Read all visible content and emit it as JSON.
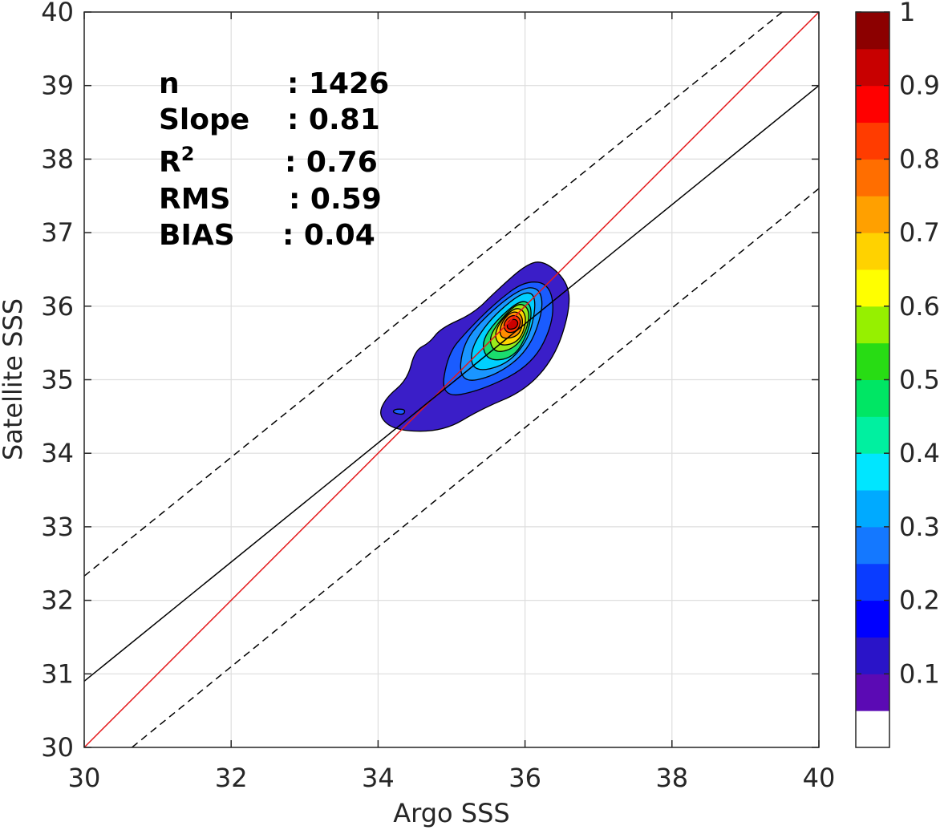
{
  "chart_data": {
    "type": "contour",
    "xlabel": "Argo SSS",
    "ylabel": "Satellite SSS",
    "xlim": [
      30,
      40
    ],
    "ylim": [
      30,
      40
    ],
    "x_ticks": [
      30,
      32,
      34,
      36,
      38,
      40
    ],
    "y_ticks": [
      30,
      31,
      32,
      33,
      34,
      35,
      36,
      37,
      38,
      39,
      40
    ],
    "grid": true,
    "stats": [
      {
        "name": "n",
        "sep": ":",
        "value": "1426"
      },
      {
        "name": "Slope",
        "sep": ":",
        "value": "0.81"
      },
      {
        "name": "R",
        "sup": "2",
        "sep": ":",
        "value": "0.76"
      },
      {
        "name": "RMS",
        "sep": ":",
        "value": "0.59"
      },
      {
        "name": "BIAS",
        "sep": ":",
        "value": "0.04"
      }
    ],
    "lines": [
      {
        "kind": "identity",
        "color": "#e41a1c",
        "style": "solid",
        "points": [
          [
            30,
            30
          ],
          [
            40,
            40
          ]
        ]
      },
      {
        "kind": "regression",
        "color": "#000000",
        "style": "solid",
        "points": [
          [
            30,
            30.9
          ],
          [
            40,
            39.0
          ]
        ]
      },
      {
        "kind": "upper-bound",
        "color": "#000000",
        "style": "dashed",
        "points": [
          [
            30,
            32.33
          ],
          [
            39.5,
            40
          ]
        ]
      },
      {
        "kind": "lower-bound",
        "color": "#000000",
        "style": "dashed",
        "points": [
          [
            30.65,
            30
          ],
          [
            40,
            37.6
          ]
        ]
      }
    ],
    "density_peak": {
      "x": 35.85,
      "y": 35.75
    },
    "contours": [
      {
        "level": 0.05,
        "color": "#3a1ec8",
        "points": [
          [
            34.25,
            34.3
          ],
          [
            34.9,
            34.3
          ],
          [
            35.4,
            34.6
          ],
          [
            36.0,
            34.85
          ],
          [
            36.4,
            35.3
          ],
          [
            36.6,
            35.9
          ],
          [
            36.6,
            36.3
          ],
          [
            36.3,
            36.6
          ],
          [
            36.05,
            36.6
          ],
          [
            35.6,
            36.2
          ],
          [
            35.3,
            35.9
          ],
          [
            34.85,
            35.7
          ],
          [
            34.7,
            35.5
          ],
          [
            34.5,
            35.4
          ],
          [
            34.4,
            35.0
          ],
          [
            34.1,
            34.75
          ],
          [
            34.0,
            34.5
          ]
        ]
      },
      {
        "level": 0.15,
        "color": "#1a5cff",
        "points": [
          [
            34.85,
            34.75
          ],
          [
            35.4,
            34.85
          ],
          [
            36.1,
            35.2
          ],
          [
            36.4,
            35.8
          ],
          [
            36.35,
            36.3
          ],
          [
            36.0,
            36.35
          ],
          [
            35.6,
            36.05
          ],
          [
            35.2,
            35.65
          ],
          [
            34.95,
            35.35
          ]
        ]
      },
      {
        "level": 0.25,
        "color": "#1a96ff",
        "points": [
          [
            35.1,
            34.95
          ],
          [
            35.6,
            35.05
          ],
          [
            36.05,
            35.4
          ],
          [
            36.25,
            35.95
          ],
          [
            36.2,
            36.25
          ],
          [
            35.95,
            36.25
          ],
          [
            35.5,
            35.9
          ],
          [
            35.15,
            35.5
          ]
        ]
      },
      {
        "level": 0.35,
        "color": "#00d0ff",
        "points": [
          [
            35.3,
            35.1
          ],
          [
            35.75,
            35.2
          ],
          [
            36.05,
            35.55
          ],
          [
            36.15,
            36.0
          ],
          [
            36.1,
            36.2
          ],
          [
            35.9,
            36.15
          ],
          [
            35.5,
            35.8
          ],
          [
            35.25,
            35.4
          ]
        ]
      },
      {
        "level": 0.45,
        "color": "#1adc6e",
        "points": [
          [
            35.5,
            35.25
          ],
          [
            35.85,
            35.3
          ],
          [
            36.05,
            35.65
          ],
          [
            36.1,
            36.0
          ],
          [
            35.95,
            36.1
          ],
          [
            35.6,
            35.8
          ],
          [
            35.4,
            35.5
          ]
        ]
      },
      {
        "level": 0.55,
        "color": "#9aeb1a",
        "points": [
          [
            35.6,
            35.35
          ],
          [
            35.9,
            35.45
          ],
          [
            36.05,
            35.75
          ],
          [
            36.05,
            35.98
          ],
          [
            35.9,
            36.05
          ],
          [
            35.65,
            35.8
          ],
          [
            35.5,
            35.55
          ]
        ]
      },
      {
        "level": 0.65,
        "color": "#ffd500",
        "points": [
          [
            35.68,
            35.45
          ],
          [
            35.92,
            35.52
          ],
          [
            36.02,
            35.78
          ],
          [
            35.98,
            35.95
          ],
          [
            35.85,
            35.98
          ],
          [
            35.65,
            35.78
          ],
          [
            35.58,
            35.58
          ]
        ]
      },
      {
        "level": 0.75,
        "color": "#ff8c00",
        "points": [
          [
            35.72,
            35.55
          ],
          [
            35.92,
            35.6
          ],
          [
            35.98,
            35.8
          ],
          [
            35.92,
            35.92
          ],
          [
            35.8,
            35.92
          ],
          [
            35.68,
            35.78
          ],
          [
            35.65,
            35.62
          ]
        ]
      },
      {
        "level": 0.85,
        "color": "#ff3200",
        "points": [
          [
            35.75,
            35.63
          ],
          [
            35.9,
            35.66
          ],
          [
            35.95,
            35.8
          ],
          [
            35.88,
            35.88
          ],
          [
            35.78,
            35.86
          ],
          [
            35.7,
            35.75
          ]
        ]
      },
      {
        "level": 0.95,
        "color": "#cc0000",
        "points": [
          [
            35.78,
            35.68
          ],
          [
            35.88,
            35.7
          ],
          [
            35.91,
            35.78
          ],
          [
            35.86,
            35.83
          ],
          [
            35.78,
            35.8
          ],
          [
            35.75,
            35.73
          ]
        ]
      }
    ],
    "contour_islands": [
      {
        "level": 0.05,
        "color": "#1a5cff",
        "points": [
          [
            34.2,
            34.55
          ],
          [
            34.35,
            34.52
          ],
          [
            34.37,
            34.6
          ],
          [
            34.22,
            34.6
          ]
        ]
      }
    ],
    "colorbar": {
      "ticks": [
        0.1,
        0.2,
        0.3,
        0.4,
        0.5,
        0.6,
        0.7,
        0.8,
        0.9,
        1
      ],
      "tick_labels": [
        "0.1",
        "0.2",
        "0.3",
        "0.4",
        "0.5",
        "0.6",
        "0.7",
        "0.8",
        "0.9",
        "1"
      ],
      "range": [
        0,
        1
      ],
      "bands": [
        {
          "from": 0.0,
          "to": 0.05,
          "color": "#ffffff"
        },
        {
          "from": 0.05,
          "to": 0.1,
          "color": "#5b0ab4"
        },
        {
          "from": 0.1,
          "to": 0.15,
          "color": "#2a14c8"
        },
        {
          "from": 0.15,
          "to": 0.2,
          "color": "#0000ff"
        },
        {
          "from": 0.2,
          "to": 0.25,
          "color": "#0a3cff"
        },
        {
          "from": 0.25,
          "to": 0.3,
          "color": "#1478ff"
        },
        {
          "from": 0.3,
          "to": 0.35,
          "color": "#00aaff"
        },
        {
          "from": 0.35,
          "to": 0.4,
          "color": "#00e6ff"
        },
        {
          "from": 0.4,
          "to": 0.45,
          "color": "#00f0a0"
        },
        {
          "from": 0.45,
          "to": 0.5,
          "color": "#00e664"
        },
        {
          "from": 0.5,
          "to": 0.55,
          "color": "#28dc14"
        },
        {
          "from": 0.55,
          "to": 0.6,
          "color": "#96f000"
        },
        {
          "from": 0.6,
          "to": 0.65,
          "color": "#ffff00"
        },
        {
          "from": 0.65,
          "to": 0.7,
          "color": "#ffd200"
        },
        {
          "from": 0.7,
          "to": 0.75,
          "color": "#ffa000"
        },
        {
          "from": 0.75,
          "to": 0.8,
          "color": "#ff6e00"
        },
        {
          "from": 0.8,
          "to": 0.85,
          "color": "#ff3c00"
        },
        {
          "from": 0.85,
          "to": 0.9,
          "color": "#ff0000"
        },
        {
          "from": 0.9,
          "to": 0.95,
          "color": "#c80000"
        },
        {
          "from": 0.95,
          "to": 1.0,
          "color": "#8c0000"
        }
      ]
    }
  }
}
